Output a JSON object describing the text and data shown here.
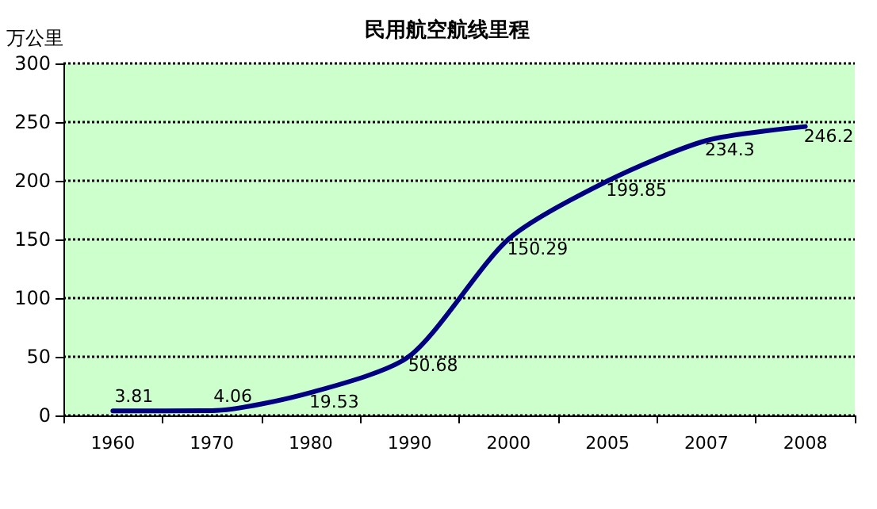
{
  "chart_data": {
    "type": "line",
    "title": "民用航空航线里程",
    "ylabel": "万公里",
    "categories": [
      "1960",
      "1970",
      "1980",
      "1990",
      "2000",
      "2005",
      "2007",
      "2008"
    ],
    "series": [
      {
        "color": "#000080",
        "values": [
          3.81,
          4.06,
          19.53,
          50.68,
          150.29,
          199.85,
          234.3,
          246.2
        ]
      }
    ],
    "ylim": [
      0,
      300
    ],
    "yticks": [
      0,
      50,
      100,
      150,
      200,
      250,
      300
    ],
    "grid": "y",
    "legend": false,
    "marker": "none",
    "line_style": "solid",
    "data_labels": true
  }
}
